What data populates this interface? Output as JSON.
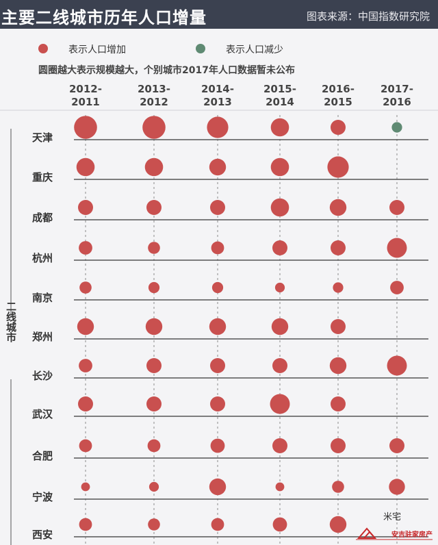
{
  "header": {
    "title": "主要二线城市历年人口增量",
    "source": "图表来源：中国指数研究院"
  },
  "legend": {
    "increase_label": "表示人口增加",
    "decrease_label": "表示人口减少",
    "increase_color": "#c9504f",
    "decrease_color": "#5f8a73"
  },
  "note": "圆圈越大表示规模越大，个别城市2017年人口数据暂未公布",
  "watermark": {
    "text": "米宅",
    "brand": "安吉驻家房产"
  },
  "chart_data": {
    "type": "bubble",
    "size_scale": "relative (1 = smallest, 6 = largest)",
    "group_label": "二线城市",
    "columns": [
      {
        "line1": "2012-",
        "line2": "2011"
      },
      {
        "line1": "2013-",
        "line2": "2012"
      },
      {
        "line1": "2014-",
        "line2": "2013"
      },
      {
        "line1": "2015-",
        "line2": "2014"
      },
      {
        "line1": "2016-",
        "line2": "2015"
      },
      {
        "line1": "2017-",
        "line2": "2016"
      }
    ],
    "rows": [
      {
        "city": "天津",
        "sizes": [
          6,
          6,
          5.5,
          4.5,
          3.5,
          2
        ],
        "trend": [
          "increase",
          "increase",
          "increase",
          "increase",
          "increase",
          "decrease"
        ]
      },
      {
        "city": "重庆",
        "sizes": [
          4.5,
          4.5,
          4,
          4.5,
          5.5,
          null
        ],
        "trend": [
          "increase",
          "increase",
          "increase",
          "increase",
          "increase",
          null
        ]
      },
      {
        "city": "成都",
        "sizes": [
          3.5,
          3.5,
          3.5,
          4.5,
          4,
          3.5
        ],
        "trend": [
          "increase",
          "increase",
          "increase",
          "increase",
          "increase",
          "increase"
        ]
      },
      {
        "city": "杭州",
        "sizes": [
          3,
          2.5,
          2.8,
          3.5,
          3.5,
          5
        ],
        "trend": [
          "increase",
          "increase",
          "increase",
          "increase",
          "increase",
          "increase"
        ]
      },
      {
        "city": "南京",
        "sizes": [
          2.5,
          2.2,
          2.2,
          1.8,
          2,
          3
        ],
        "trend": [
          "increase",
          "increase",
          "increase",
          "increase",
          "increase",
          "increase"
        ]
      },
      {
        "city": "郑州",
        "sizes": [
          4,
          4,
          4,
          4,
          3.5,
          null
        ],
        "trend": [
          "increase",
          "increase",
          "increase",
          "increase",
          "increase",
          null
        ]
      },
      {
        "city": "长沙",
        "sizes": [
          3,
          3.5,
          3.5,
          3.5,
          4,
          5
        ],
        "trend": [
          "increase",
          "increase",
          "increase",
          "increase",
          "increase",
          "increase"
        ]
      },
      {
        "city": "武汉",
        "sizes": [
          3.5,
          3.5,
          3.5,
          5,
          3.5,
          null
        ],
        "trend": [
          "increase",
          "increase",
          "increase",
          "increase",
          "increase",
          null
        ]
      },
      {
        "city": "合肥",
        "sizes": [
          2.8,
          2.8,
          3.2,
          3.5,
          3.5,
          3.5
        ],
        "trend": [
          "increase",
          "increase",
          "increase",
          "increase",
          "increase",
          "increase"
        ]
      },
      {
        "city": "宁波",
        "sizes": [
          1.5,
          1.8,
          4,
          1.5,
          2.5,
          3.8
        ],
        "trend": [
          "increase",
          "increase",
          "increase",
          "increase",
          "increase",
          "increase"
        ]
      },
      {
        "city": "西安",
        "sizes": [
          2.8,
          2.5,
          2.8,
          3.2,
          4,
          null
        ],
        "trend": [
          "increase",
          "increase",
          "increase",
          "increase",
          "increase",
          null
        ]
      }
    ]
  }
}
